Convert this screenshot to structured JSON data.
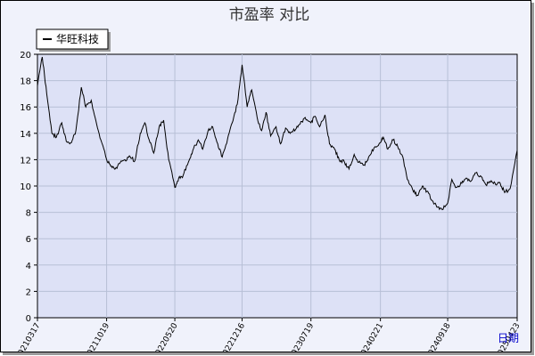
{
  "chart_data": {
    "type": "line",
    "title": "市盈率 对比",
    "xlabel": "日期",
    "ylabel": "",
    "ylim": [
      0,
      20
    ],
    "yticks": [
      0,
      2,
      4,
      6,
      8,
      10,
      12,
      14,
      16,
      18,
      20
    ],
    "xticks": [
      "20210317",
      "20211019",
      "20220520",
      "20221216",
      "20230719",
      "20240221",
      "20240918",
      "20250423"
    ],
    "legend": {
      "position": "top-left",
      "items": [
        "华旺科技"
      ]
    },
    "grid": true,
    "colors": {
      "line": "#000000",
      "plot_bg": "#dde1f6",
      "grid": "#b7bfd6",
      "frame_bg": "#f0f2fb",
      "axis_label": "#0000cc"
    },
    "series": [
      {
        "name": "华旺科技",
        "x": [
          "20210317",
          "20210401",
          "20210415",
          "20210501",
          "20210515",
          "20210601",
          "20210615",
          "20210701",
          "20210715",
          "20210801",
          "20210815",
          "20210901",
          "20210915",
          "20211001",
          "20211019",
          "20211101",
          "20211115",
          "20211201",
          "20211215",
          "20220101",
          "20220115",
          "20220201",
          "20220215",
          "20220301",
          "20220315",
          "20220401",
          "20220415",
          "20220501",
          "20220520",
          "20220601",
          "20220615",
          "20220701",
          "20220715",
          "20220801",
          "20220815",
          "20220901",
          "20220915",
          "20221001",
          "20221015",
          "20221101",
          "20221115",
          "20221201",
          "20221216",
          "20230101",
          "20230115",
          "20230201",
          "20230215",
          "20230301",
          "20230315",
          "20230401",
          "20230415",
          "20230501",
          "20230515",
          "20230601",
          "20230615",
          "20230701",
          "20230719",
          "20230801",
          "20230815",
          "20230901",
          "20230915",
          "20231001",
          "20231015",
          "20231101",
          "20231115",
          "20231201",
          "20231215",
          "20240101",
          "20240115",
          "20240201",
          "20240221",
          "20240301",
          "20240315",
          "20240401",
          "20240415",
          "20240501",
          "20240515",
          "20240601",
          "20240615",
          "20240701",
          "20240715",
          "20240801",
          "20240815",
          "20240901",
          "20240918",
          "20241001",
          "20241015",
          "20241101",
          "20241115",
          "20241201",
          "20241215",
          "20250101",
          "20250115",
          "20250201",
          "20250215",
          "20250301",
          "20250315",
          "20250401",
          "20250423"
        ],
        "values": [
          17.6,
          19.8,
          17.0,
          14.0,
          13.7,
          14.8,
          13.4,
          13.3,
          14.2,
          17.5,
          16.0,
          16.5,
          15.0,
          13.5,
          12.0,
          11.5,
          11.3,
          11.8,
          12.0,
          12.2,
          11.9,
          14.0,
          14.8,
          13.5,
          12.5,
          14.5,
          15.0,
          12.0,
          9.9,
          10.6,
          10.8,
          11.8,
          12.7,
          13.5,
          12.8,
          14.2,
          14.5,
          13.2,
          12.2,
          13.6,
          14.8,
          16.2,
          19.2,
          16.0,
          17.3,
          15.2,
          14.2,
          15.6,
          13.8,
          14.5,
          13.2,
          14.4,
          14.0,
          14.3,
          14.7,
          15.2,
          14.8,
          15.3,
          14.5,
          15.4,
          13.2,
          12.8,
          12.0,
          11.8,
          11.3,
          12.4,
          11.8,
          11.6,
          12.2,
          12.9,
          13.3,
          13.7,
          12.8,
          13.5,
          13.0,
          12.2,
          10.5,
          9.7,
          9.3,
          10.0,
          9.6,
          8.9,
          8.4,
          8.2,
          8.7,
          10.5,
          9.9,
          10.2,
          10.6,
          10.4,
          11.0,
          10.7,
          10.1,
          10.4,
          10.1,
          10.2,
          9.5,
          9.8,
          12.7
        ]
      }
    ]
  }
}
